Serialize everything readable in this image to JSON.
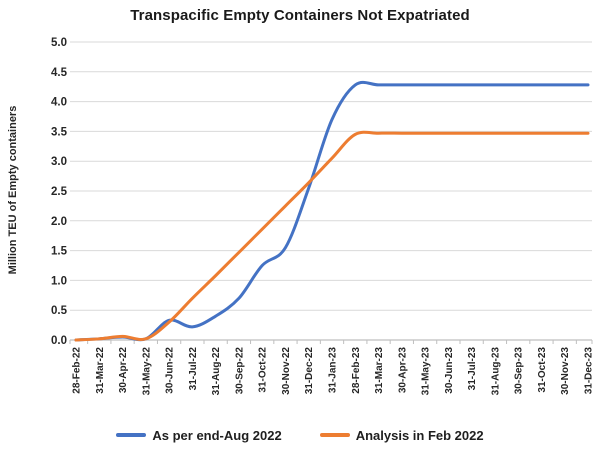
{
  "chart_data": {
    "type": "line",
    "title": "Transpacific Empty Containers Not Expatriated",
    "ylabel": "Million TEU of Empty containers",
    "xlabel": "",
    "ylim": [
      0,
      5
    ],
    "ytick_step": 0.5,
    "grid": "horizontal-only",
    "legend_position": "bottom",
    "smooth_lines": true,
    "categories": [
      "28-Feb-22",
      "31-Mar-22",
      "30-Apr-22",
      "31-May-22",
      "30-Jun-22",
      "31-Jul-22",
      "31-Aug-22",
      "30-Sep-22",
      "31-Oct-22",
      "30-Nov-22",
      "31-Dec-22",
      "31-Jan-23",
      "28-Feb-23",
      "31-Mar-23",
      "30-Apr-23",
      "31-May-23",
      "30-Jun-23",
      "31-Jul-23",
      "31-Aug-23",
      "30-Sep-23",
      "31-Oct-23",
      "30-Nov-23",
      "31-Dec-23"
    ],
    "series": [
      {
        "name": "As per end-Aug 2022",
        "color": "#4472C4",
        "values": [
          0.0,
          0.02,
          0.05,
          0.02,
          0.33,
          0.22,
          0.4,
          0.7,
          1.25,
          1.55,
          2.55,
          3.7,
          4.28,
          4.28,
          4.28,
          4.28,
          4.28,
          4.28,
          4.28,
          4.28,
          4.28,
          4.28,
          4.28
        ]
      },
      {
        "name": "Analysis in Feb 2022",
        "color": "#ED7D31",
        "values": [
          0.0,
          0.02,
          0.06,
          0.02,
          0.3,
          0.7,
          1.08,
          1.47,
          1.86,
          2.25,
          2.64,
          3.05,
          3.45,
          3.47,
          3.47,
          3.47,
          3.47,
          3.47,
          3.47,
          3.47,
          3.47,
          3.47,
          3.47
        ]
      }
    ]
  },
  "style_colors": {
    "gridline": "#D9D9D9",
    "axis_line": "#BFBFBF",
    "tick_label": "#262626",
    "title_text": "#1A1A1A",
    "background": "#FFFFFF"
  }
}
